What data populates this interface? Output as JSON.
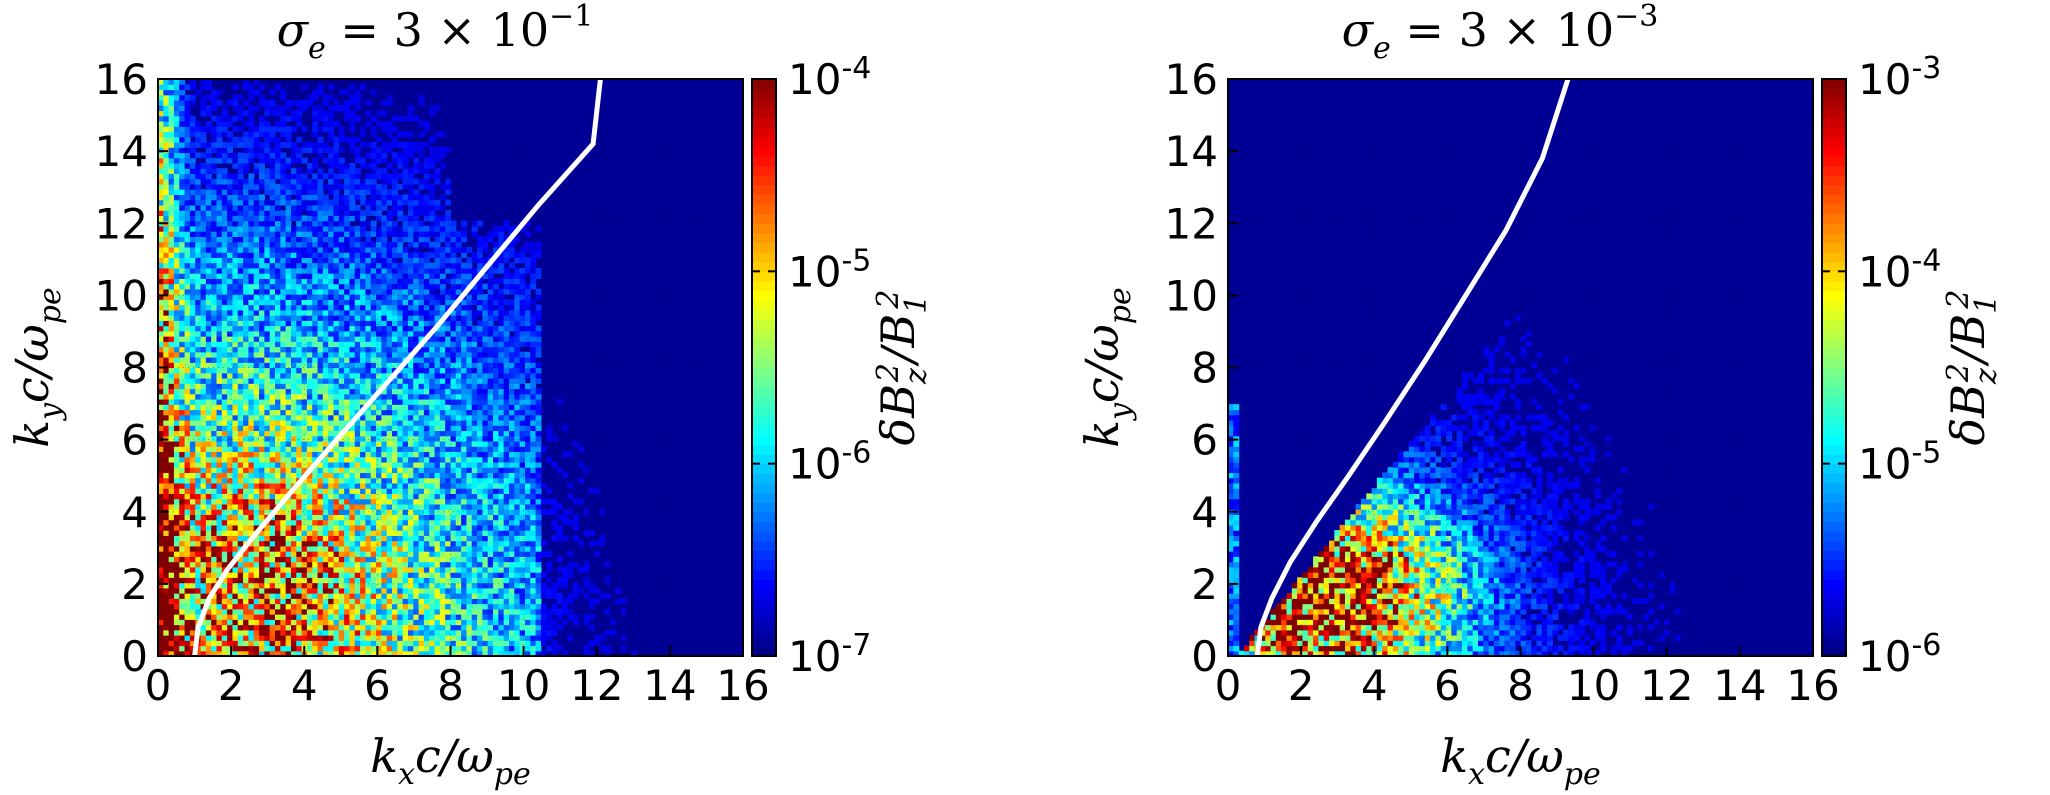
{
  "chart_data": [
    {
      "type": "heatmap",
      "id": "left",
      "title": "σe = 3 × 10−1",
      "title_parts": {
        "symbol": "σ",
        "sub": "e",
        "eq": " = 3 × 10",
        "exp": "−1"
      },
      "xlabel": "kx c/ωpe",
      "xlabel_parts": {
        "k": "k",
        "k_sub": "x",
        "rest": "c/ω",
        "w_sub": "pe"
      },
      "ylabel": "ky c/ωpe",
      "ylabel_parts": {
        "k": "k",
        "k_sub": "y",
        "rest": "c/ω",
        "w_sub": "pe"
      },
      "xlim": [
        0,
        16
      ],
      "ylim": [
        0,
        16
      ],
      "xticks": [
        "0",
        "2",
        "4",
        "6",
        "8",
        "10",
        "12",
        "14",
        "16"
      ],
      "yticks": [
        "0",
        "2",
        "4",
        "6",
        "8",
        "10",
        "12",
        "14",
        "16"
      ],
      "colorbar": {
        "label": "δBz²/B1²",
        "label_parts": {
          "d": "δB",
          "z": "z",
          "sq": "2",
          "mid": "/B",
          "one": "1",
          "sq2": "2"
        },
        "scale": "log",
        "range": [
          1e-07,
          0.0001
        ],
        "ticks": [
          {
            "value": 1e-07,
            "label": "10-7"
          },
          {
            "value": 1e-06,
            "label": "10-6"
          },
          {
            "value": 1e-05,
            "label": "10-5"
          },
          {
            "value": 0.0001,
            "label": "10-4"
          }
        ],
        "colormap": "jet"
      },
      "curve": {
        "color": "#ffffff",
        "points": [
          [
            1.0,
            0.0
          ],
          [
            1.1,
            0.8
          ],
          [
            1.4,
            1.6
          ],
          [
            1.9,
            2.4
          ],
          [
            2.6,
            3.3
          ],
          [
            3.6,
            4.5
          ],
          [
            4.8,
            5.9
          ],
          [
            6.2,
            7.5
          ],
          [
            7.6,
            9.1
          ],
          [
            9.0,
            10.8
          ],
          [
            10.4,
            12.5
          ],
          [
            11.9,
            14.2
          ],
          [
            12.1,
            16.0
          ]
        ]
      },
      "intensity_model": "broad low-k emission; strong ridge near kx≈0 across all ky; diffuse spread to kx≈10"
    },
    {
      "type": "heatmap",
      "id": "right",
      "title": "σe = 3 × 10−3",
      "title_parts": {
        "symbol": "σ",
        "sub": "e",
        "eq": " = 3 × 10",
        "exp": "−3"
      },
      "xlabel": "kx c/ωpe",
      "xlabel_parts": {
        "k": "k",
        "k_sub": "x",
        "rest": "c/ω",
        "w_sub": "pe"
      },
      "ylabel": "ky c/ωpe",
      "ylabel_parts": {
        "k": "k",
        "k_sub": "y",
        "rest": "c/ω",
        "w_sub": "pe"
      },
      "xlim": [
        0,
        16
      ],
      "ylim": [
        0,
        16
      ],
      "xticks": [
        "0",
        "2",
        "4",
        "6",
        "8",
        "10",
        "12",
        "14",
        "16"
      ],
      "yticks": [
        "0",
        "2",
        "4",
        "6",
        "8",
        "10",
        "12",
        "14",
        "16"
      ],
      "colorbar": {
        "label": "δBz²/B1²",
        "label_parts": {
          "d": "δB",
          "z": "z",
          "sq": "2",
          "mid": "/B",
          "one": "1",
          "sq2": "2"
        },
        "scale": "log",
        "range": [
          1e-06,
          0.001
        ],
        "ticks": [
          {
            "value": 1e-06,
            "label": "10-6"
          },
          {
            "value": 1e-05,
            "label": "10-5"
          },
          {
            "value": 0.0001,
            "label": "10-4"
          },
          {
            "value": 0.001,
            "label": "10-3"
          }
        ],
        "colormap": "jet"
      },
      "curve": {
        "color": "#ffffff",
        "points": [
          [
            0.8,
            0.0
          ],
          [
            0.9,
            0.8
          ],
          [
            1.2,
            1.6
          ],
          [
            1.7,
            2.6
          ],
          [
            2.4,
            3.7
          ],
          [
            3.3,
            5.0
          ],
          [
            4.3,
            6.5
          ],
          [
            5.4,
            8.2
          ],
          [
            6.5,
            10.0
          ],
          [
            7.6,
            11.8
          ],
          [
            8.6,
            13.8
          ],
          [
            9.3,
            16.0
          ]
        ]
      },
      "intensity_model": "emission confined below ky≈11, strongest near kx≈2–4, ky≈1–3; empty region above white curve"
    }
  ]
}
